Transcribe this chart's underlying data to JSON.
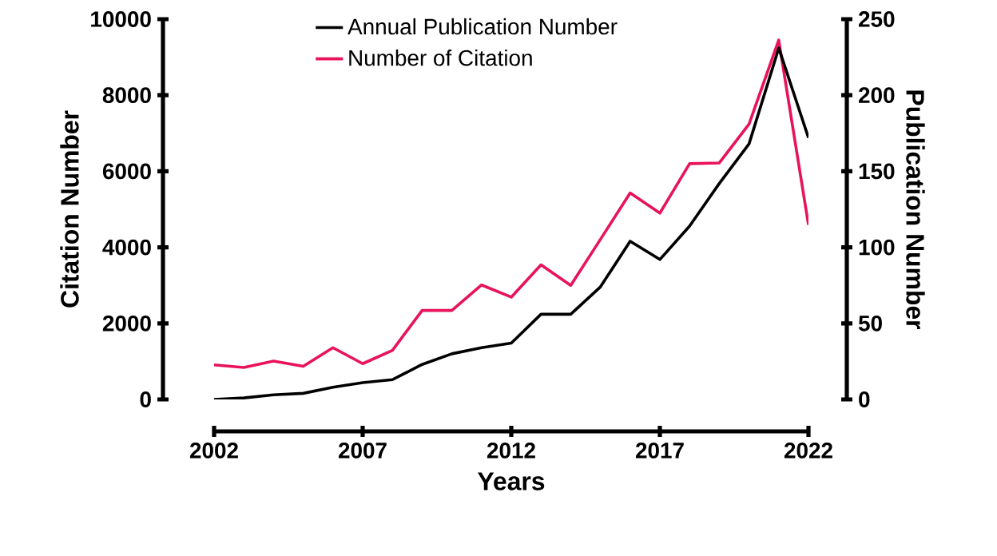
{
  "chart_data": {
    "type": "line",
    "xlabel": "Years",
    "ylabel": "Citation Number",
    "y2label": "Publication Number",
    "x": [
      2002,
      2003,
      2004,
      2005,
      2006,
      2007,
      2008,
      2009,
      2010,
      2011,
      2012,
      2013,
      2014,
      2015,
      2016,
      2017,
      2018,
      2019,
      2020,
      2021,
      2022
    ],
    "series": [
      {
        "name": "Annual Publication Number",
        "color": "#000000",
        "axis": "y2",
        "values": [
          0,
          1,
          3,
          4,
          8,
          11,
          13,
          23,
          30,
          34,
          37,
          56,
          56,
          74,
          104,
          92,
          114,
          142,
          168,
          231,
          172
        ]
      },
      {
        "name": "Number of Citation",
        "color": "#e8135a",
        "values": [
          910,
          840,
          1010,
          870,
          1360,
          940,
          1290,
          2340,
          2340,
          3010,
          2690,
          3540,
          3000,
          4210,
          5430,
          4900,
          6200,
          6220,
          7240,
          9450,
          4590
        ]
      }
    ],
    "xlim": [
      2002,
      2022
    ],
    "xticks": [
      2002,
      2007,
      2012,
      2017,
      2022
    ],
    "ylim": [
      0,
      10000
    ],
    "yticks": [
      0,
      2000,
      4000,
      6000,
      8000,
      10000
    ],
    "y2lim": [
      0,
      250
    ],
    "y2ticks": [
      0,
      50,
      100,
      150,
      200,
      250
    ],
    "legend": "top left",
    "grid": false,
    "marker": "none",
    "line_style": "solid"
  }
}
